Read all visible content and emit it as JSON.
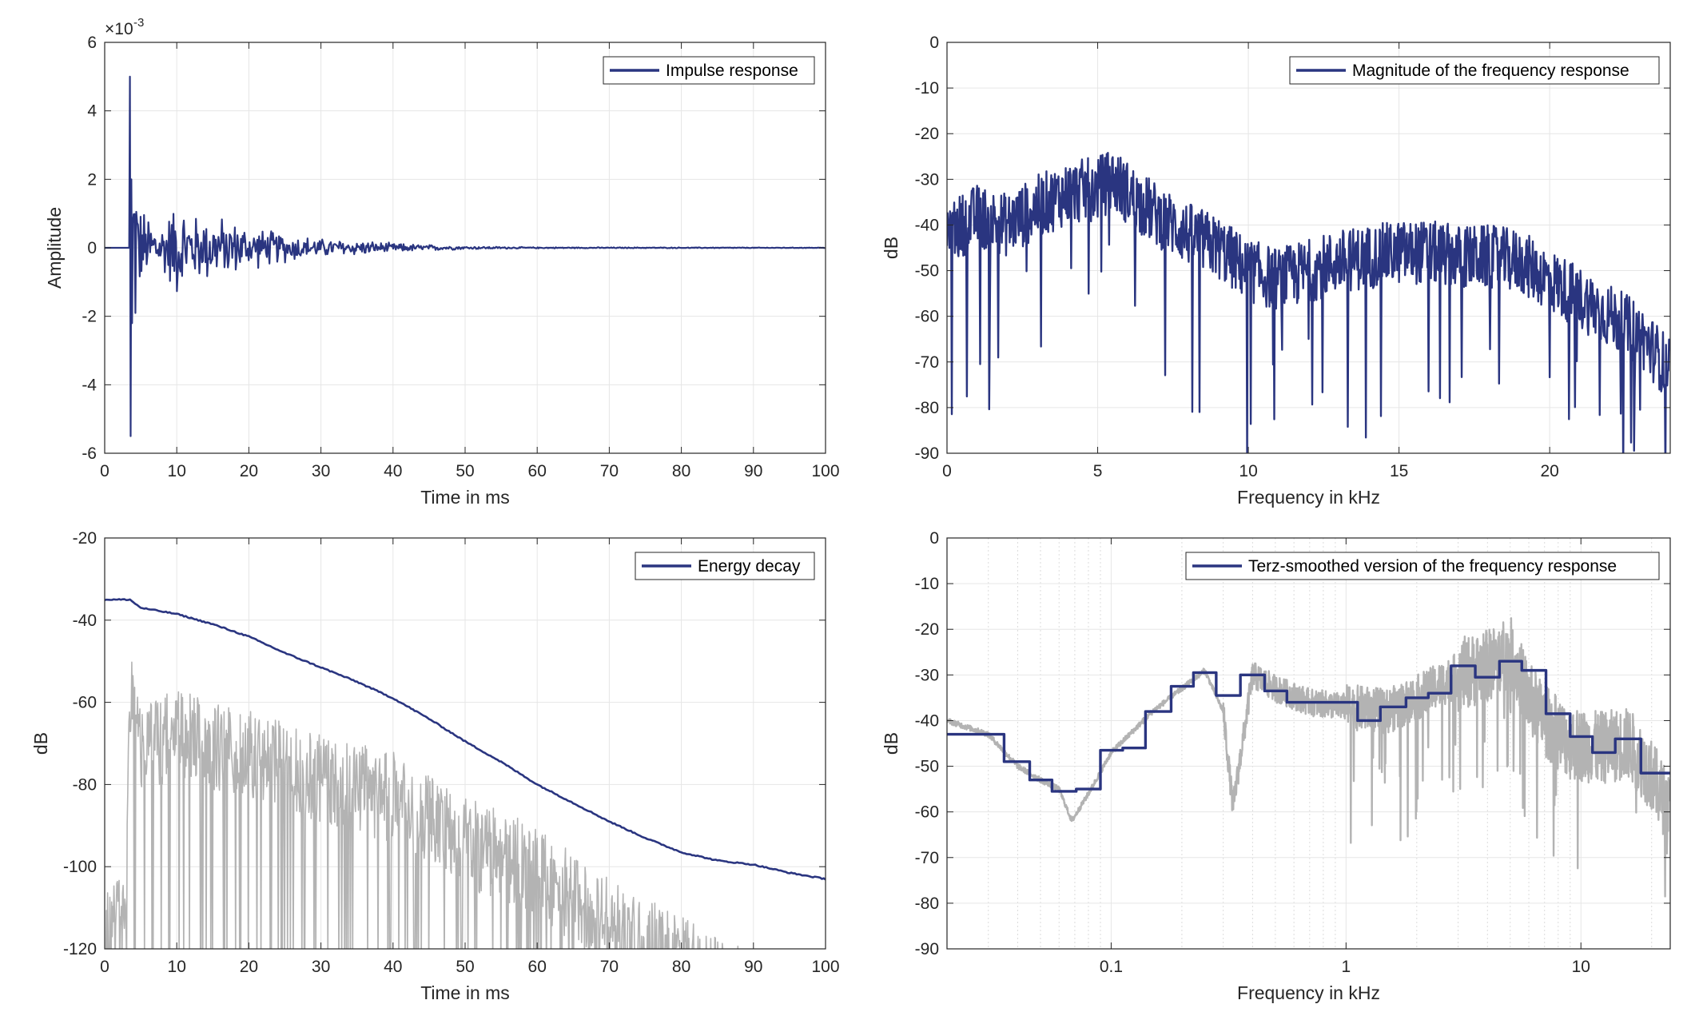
{
  "colors": {
    "series_primary": "#2a3580",
    "series_gray": "#b3b3b3",
    "grid": "#e6e6e6",
    "axis": "#262626"
  },
  "chart_data": [
    {
      "id": "impulse",
      "type": "line",
      "xlabel": "Time in ms",
      "ylabel": "Amplitude",
      "exponent_label": "×10",
      "exponent_power": "-3",
      "xlim": [
        0,
        100
      ],
      "ylim": [
        -6,
        6
      ],
      "xscale": "linear",
      "grid": true,
      "legend_position": "top-right",
      "xticks": [
        0,
        10,
        20,
        30,
        40,
        50,
        60,
        70,
        80,
        90,
        100
      ],
      "yticks": [
        -6,
        -4,
        -2,
        0,
        2,
        4,
        6
      ],
      "series": [
        {
          "name": "Impulse response",
          "color": "#2a3580",
          "notes_peak": {
            "max": 5.0,
            "min": -5.5,
            "at_ms": 3.5
          },
          "envelope": {
            "x": [
              3.5,
              5,
              8,
              10,
              12,
              15,
              20,
              25,
              30,
              35,
              40,
              45,
              50,
              60,
              100
            ],
            "y": [
              5.0,
              1.3,
              0.9,
              1.6,
              1.1,
              1.1,
              0.7,
              0.5,
              0.3,
              0.25,
              0.15,
              0.1,
              0.05,
              0.02,
              0.01
            ]
          }
        }
      ]
    },
    {
      "id": "magnitude",
      "type": "line",
      "xlabel": "Frequency in kHz",
      "ylabel": "dB",
      "xlim": [
        0,
        24
      ],
      "ylim": [
        -90,
        0
      ],
      "xscale": "linear",
      "grid": true,
      "legend_position": "top-right",
      "xticks": [
        0,
        5,
        10,
        15,
        20
      ],
      "yticks": [
        0,
        -10,
        -20,
        -30,
        -40,
        -50,
        -60,
        -70,
        -80,
        -90
      ],
      "series": [
        {
          "name": "Magnitude of the frequency response",
          "color": "#2a3580",
          "mean_curve": {
            "x": [
              0,
              1,
              2,
              3,
              4,
              5,
              5.5,
              6,
              7,
              8,
              9,
              10,
              11,
              12,
              13,
              14,
              15,
              16,
              17,
              18,
              19,
              20,
              21,
              22,
              23,
              24
            ],
            "y": [
              -42,
              -38,
              -40,
              -36,
              -33,
              -32,
              -30,
              -33,
              -38,
              -42,
              -45,
              -50,
              -52,
              -50,
              -48,
              -47,
              -46,
              -46,
              -47,
              -47,
              -48,
              -52,
              -56,
              -60,
              -64,
              -72
            ]
          }
        }
      ]
    },
    {
      "id": "energy",
      "type": "line",
      "xlabel": "Time in ms",
      "ylabel": "dB",
      "xlim": [
        0,
        100
      ],
      "ylim": [
        -120,
        -20
      ],
      "xscale": "linear",
      "grid": true,
      "legend_position": "top-right",
      "xticks": [
        0,
        10,
        20,
        30,
        40,
        50,
        60,
        70,
        80,
        90,
        100
      ],
      "yticks": [
        -20,
        -40,
        -60,
        -80,
        -100,
        -120
      ],
      "series": [
        {
          "name": "Energy decay",
          "color": "#2a3580",
          "x": [
            0,
            3.5,
            5,
            10,
            15,
            20,
            25,
            30,
            35,
            40,
            45,
            50,
            55,
            60,
            65,
            70,
            75,
            80,
            85,
            90,
            95,
            100
          ],
          "y": [
            -35,
            -35,
            -37,
            -38.5,
            -41,
            -44,
            -48,
            -51.5,
            -55,
            -59,
            -64,
            -69.5,
            -74.5,
            -80,
            -84.5,
            -89,
            -93,
            -96.5,
            -98.5,
            -99.5,
            -101.5,
            -103
          ]
        },
        {
          "color": "#b3b3b3",
          "envelope_top": {
            "x": [
              0,
              3,
              3.5,
              5,
              10,
              20,
              30,
              40,
              50,
              60,
              70,
              80,
              86,
              90
            ],
            "y": [
              -107,
              -100,
              -45,
              -60,
              -57,
              -62,
              -68,
              -72,
              -83,
              -90,
              -103,
              -112,
              -118,
              -120
            ]
          }
        }
      ]
    },
    {
      "id": "terz",
      "type": "line",
      "xlabel": "Frequency in kHz",
      "ylabel": "dB",
      "xlim": [
        0.02,
        24
      ],
      "ylim": [
        -90,
        0
      ],
      "xscale": "log",
      "grid": true,
      "legend_position": "top-right",
      "xticks": [
        0.1,
        1,
        10
      ],
      "xtick_labels": [
        "0.1",
        "1",
        "10"
      ],
      "yticks": [
        0,
        -10,
        -20,
        -30,
        -40,
        -50,
        -60,
        -70,
        -80,
        -90
      ],
      "series": [
        {
          "name": "Terz-smoothed version of the frequency response",
          "color": "#2a3580",
          "step": true,
          "x": [
            0.02,
            0.035,
            0.045,
            0.056,
            0.071,
            0.09,
            0.112,
            0.14,
            0.18,
            0.224,
            0.28,
            0.355,
            0.45,
            0.56,
            0.71,
            0.9,
            1.12,
            1.4,
            1.8,
            2.24,
            2.8,
            3.55,
            4.5,
            5.6,
            7.1,
            9,
            11.2,
            14,
            18,
            24
          ],
          "y": [
            -43,
            -49,
            -53,
            -55.5,
            -55,
            -46.5,
            -46,
            -38,
            -32.5,
            -29.5,
            -34.5,
            -30,
            -33.5,
            -36,
            -36,
            -36,
            -40,
            -37,
            -35,
            -34,
            -28,
            -30.5,
            -27,
            -29,
            -38.5,
            -43.5,
            -47,
            -44,
            -51.5,
            -51.5
          ]
        },
        {
          "color": "#b3b3b3",
          "x": [
            0.02,
            0.03,
            0.04,
            0.05,
            0.06,
            0.068,
            0.08,
            0.1,
            0.12,
            0.15,
            0.2,
            0.25,
            0.3,
            0.33,
            0.4,
            0.5,
            0.7,
            1,
            1.5,
            2,
            3,
            4,
            5,
            6,
            7,
            9,
            12,
            16,
            20,
            24
          ],
          "y": [
            -40,
            -43,
            -50,
            -53,
            -55,
            -62,
            -56,
            -47,
            -43,
            -38,
            -33,
            -29,
            -38,
            -59,
            -30,
            -33,
            -36,
            -37,
            -38,
            -35,
            -30,
            -28,
            -25,
            -35,
            -40,
            -45,
            -46,
            -45,
            -52,
            -60
          ]
        }
      ]
    }
  ]
}
